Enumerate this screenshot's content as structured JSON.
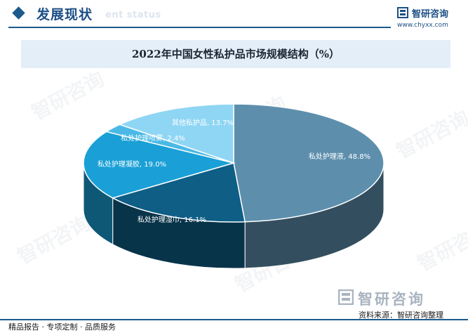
{
  "header": {
    "section_title": "发展现状",
    "section_subtitle": "ent status",
    "brand_name": "智研咨询",
    "brand_url": "www.chyxx.com"
  },
  "watermark_text": "智研咨询",
  "chart_data": {
    "type": "pie",
    "title": "2022年中国女性私护品市场规模结构（%）",
    "unit": "%",
    "style": "3d",
    "slices": [
      {
        "label": "私处护理液",
        "value": 48.8,
        "text": "私处护理液, 48.8%",
        "color": "#5d8fad"
      },
      {
        "label": "私处护理湿巾",
        "value": 16.1,
        "text": "私处护理湿巾, 16.1%",
        "color": "#0e5e86"
      },
      {
        "label": "私处护理凝胶",
        "value": 19.0,
        "text": "私处护理凝胶, 19.0%",
        "color": "#1aa0d6"
      },
      {
        "label": "私处护理喷雾",
        "value": 2.4,
        "text": "私处护理喷雾, 2.4%",
        "color": "#4bb9e5"
      },
      {
        "label": "其他私护品",
        "value": 13.7,
        "text": "其他私护品, 13.7%",
        "color": "#8fd6f4"
      }
    ]
  },
  "footer": {
    "brand_name": "智研咨询",
    "source": "资料来源：智研咨询整理",
    "slogan": "精品报告 · 专项定制 · 品质服务"
  }
}
